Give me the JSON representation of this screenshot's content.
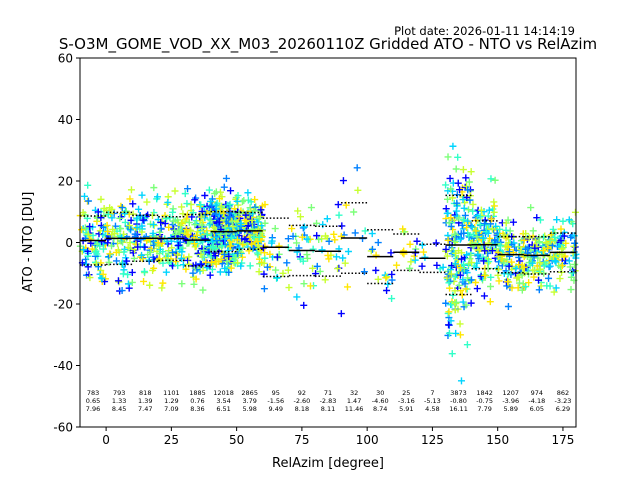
{
  "plot_date": "Plot date: 2026-01-11 14:14:19",
  "chart_data": {
    "type": "scatter",
    "title": "S-O3M_GOME_VOD_XX_M03_20260110Z Gridded ATO - NTO vs RelAzim",
    "xlabel": "RelAzim [degree]",
    "ylabel": "ATO - NTO [DU]",
    "xlim": [
      -10,
      180
    ],
    "ylim": [
      -60,
      60
    ],
    "x_ticks": [
      0,
      25,
      50,
      75,
      100,
      125,
      150,
      175
    ],
    "y_ticks": [
      -60,
      -40,
      -20,
      0,
      20,
      40,
      60
    ],
    "grid": false,
    "legend": "none",
    "colors": [
      "#0000ff",
      "#0080ff",
      "#00d4ff",
      "#30ffc8",
      "#7cff79",
      "#c8ff30",
      "#ffe600"
    ],
    "bins": [
      {
        "x_start": -10,
        "x_end": 0,
        "count": "783",
        "mean": "0.65",
        "std": "7.96"
      },
      {
        "x_start": 0,
        "x_end": 10,
        "count": "793",
        "mean": "1.33",
        "std": "8.45"
      },
      {
        "x_start": 10,
        "x_end": 20,
        "count": "818",
        "mean": "1.39",
        "std": "7.47"
      },
      {
        "x_start": 20,
        "x_end": 30,
        "count": "1101",
        "mean": "1.29",
        "std": "7.09"
      },
      {
        "x_start": 30,
        "x_end": 40,
        "count": "1885",
        "mean": "0.76",
        "std": "8.36"
      },
      {
        "x_start": 40,
        "x_end": 50,
        "count": "12018",
        "mean": "3.54",
        "std": "6.51"
      },
      {
        "x_start": 50,
        "x_end": 60,
        "count": "2865",
        "mean": "3.79",
        "std": "5.98"
      },
      {
        "x_start": 60,
        "x_end": 70,
        "count": "95",
        "mean": "-1.56",
        "std": "9.49"
      },
      {
        "x_start": 70,
        "x_end": 80,
        "count": "92",
        "mean": "-2.60",
        "std": "8.18"
      },
      {
        "x_start": 80,
        "x_end": 90,
        "count": "71",
        "mean": "-2.83",
        "std": "8.11"
      },
      {
        "x_start": 90,
        "x_end": 100,
        "count": "32",
        "mean": "1.47",
        "std": "11.46"
      },
      {
        "x_start": 100,
        "x_end": 110,
        "count": "30",
        "mean": "-4.60",
        "std": "8.74"
      },
      {
        "x_start": 110,
        "x_end": 120,
        "count": "25",
        "mean": "-3.16",
        "std": "5.91"
      },
      {
        "x_start": 120,
        "x_end": 130,
        "count": "7",
        "mean": "-5.13",
        "std": "4.58"
      },
      {
        "x_start": 130,
        "x_end": 140,
        "count": "3873",
        "mean": "-0.80",
        "std": "16.11"
      },
      {
        "x_start": 140,
        "x_end": 150,
        "count": "1842",
        "mean": "-0.75",
        "std": "7.79"
      },
      {
        "x_start": 150,
        "x_end": 160,
        "count": "1207",
        "mean": "-3.96",
        "std": "5.89"
      },
      {
        "x_start": 160,
        "x_end": 170,
        "count": "974",
        "mean": "-4.18",
        "std": "6.05"
      },
      {
        "x_start": 170,
        "x_end": 180,
        "count": "862",
        "mean": "-3.23",
        "std": "6.29"
      }
    ]
  }
}
